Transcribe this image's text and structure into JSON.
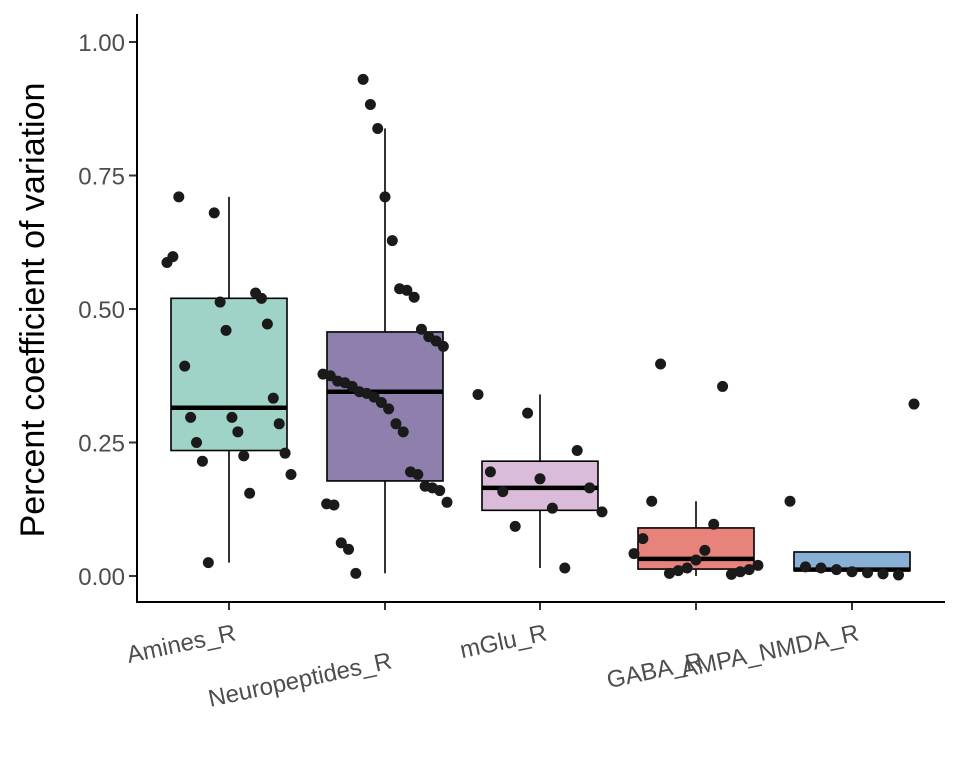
{
  "chart_data": {
    "type": "box",
    "title": "",
    "xlabel": "",
    "ylabel": "Percent coefficient of variation",
    "ylim": [
      -0.045,
      1.05
    ],
    "yticks": [
      0,
      0.25,
      0.5,
      0.75,
      1
    ],
    "ytick_labels": [
      "0.00",
      "0.25",
      "0.50",
      "0.75",
      "1.00"
    ],
    "grid": false,
    "legend": "none",
    "categories": [
      "Amines_R",
      "Neuropeptides_R",
      "mGlu_R",
      "GABA_R",
      "AMPA_NMDA_R"
    ],
    "boxes": [
      {
        "category": "Amines_R",
        "color": "#9fd3c7",
        "whisker_low": 0.025,
        "q1": 0.235,
        "median": 0.315,
        "q3": 0.52,
        "whisker_high": 0.71,
        "points": [
          0.587,
          0.53,
          0.68,
          0.598,
          0.52,
          0.513,
          0.71,
          0.472,
          0.46,
          0.393,
          0.333,
          0.297,
          0.297,
          0.285,
          0.27,
          0.25,
          0.23,
          0.225,
          0.215,
          0.19,
          0.155,
          0.025
        ]
      },
      {
        "category": "Neuropeptides_R",
        "color": "#8e7fac",
        "whisker_low": 0.005,
        "q1": 0.178,
        "median": 0.345,
        "q3": 0.457,
        "whisker_high": 0.838,
        "points": [
          0.93,
          0.883,
          0.838,
          0.71,
          0.628,
          0.538,
          0.535,
          0.522,
          0.462,
          0.448,
          0.44,
          0.43,
          0.378,
          0.375,
          0.365,
          0.362,
          0.355,
          0.345,
          0.342,
          0.335,
          0.325,
          0.313,
          0.285,
          0.27,
          0.195,
          0.19,
          0.168,
          0.165,
          0.16,
          0.138,
          0.135,
          0.133,
          0.062,
          0.05,
          0.005
        ]
      },
      {
        "category": "mGlu_R",
        "color": "#dabbd9",
        "whisker_low": 0.015,
        "q1": 0.123,
        "median": 0.165,
        "q3": 0.215,
        "whisker_high": 0.34,
        "points": [
          0.34,
          0.305,
          0.235,
          0.195,
          0.182,
          0.165,
          0.158,
          0.127,
          0.12,
          0.093,
          0.015
        ]
      },
      {
        "category": "GABA_R",
        "color": "#e8837b",
        "whisker_low": 0.0,
        "q1": 0.013,
        "median": 0.032,
        "q3": 0.09,
        "whisker_high": 0.14,
        "points": [
          0.397,
          0.355,
          0.14,
          0.097,
          0.07,
          0.048,
          0.042,
          0.03,
          0.02,
          0.015,
          0.012,
          0.01,
          0.008,
          0.005,
          0.003
        ]
      },
      {
        "category": "AMPA_NMDA_R",
        "color": "#88b0d4",
        "whisker_low": 0.0,
        "q1": 0.01,
        "median": 0.012,
        "q3": 0.045,
        "whisker_high": 0.045,
        "points": [
          0.322,
          0.14,
          0.017,
          0.015,
          0.012,
          0.008,
          0.006,
          0.004,
          0.002
        ]
      }
    ]
  }
}
